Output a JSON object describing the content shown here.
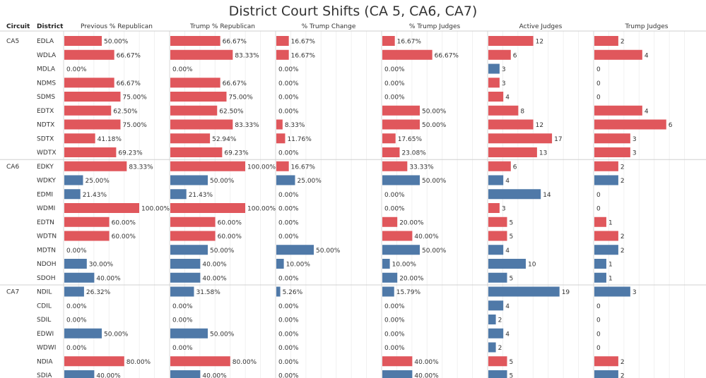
{
  "title": "District Court Shifts (CA 5, CA6, CA7)",
  "colors": {
    "red": "#e0575c",
    "blue": "#4f79a8"
  },
  "chart_data": {
    "type": "bar",
    "title": "District Court Shifts (CA 5, CA6, CA7)",
    "row_headers": [
      "Circuit",
      "District"
    ],
    "columns": [
      {
        "key": "prev",
        "label": "Previous % Republican",
        "max": 100,
        "unit": "%"
      },
      {
        "key": "trump_rep",
        "label": "Trump % Republican",
        "max": 100,
        "unit": "%"
      },
      {
        "key": "change",
        "label": "% Trump Change",
        "max": 100,
        "unit": "%"
      },
      {
        "key": "trump_judges_pct",
        "label": "% Trump Judges",
        "max": 100,
        "unit": "%"
      },
      {
        "key": "active",
        "label": "Active Judges",
        "max": 20,
        "unit": ""
      },
      {
        "key": "trump_judges",
        "label": "Trump Judges",
        "max": 6.25,
        "unit": ""
      }
    ],
    "groups": [
      {
        "circuit": "CA5",
        "rows": [
          {
            "district": "EDLA",
            "color": "red",
            "values": [
              "50.00%",
              "66.67%",
              "16.67%",
              "16.67%",
              "12",
              "2"
            ]
          },
          {
            "district": "WDLA",
            "color": "red",
            "values": [
              "66.67%",
              "83.33%",
              "16.67%",
              "66.67%",
              "6",
              "4"
            ]
          },
          {
            "district": "MDLA",
            "color": "blue",
            "values": [
              "0.00%",
              "0.00%",
              "0.00%",
              "0.00%",
              "3",
              "0"
            ]
          },
          {
            "district": "NDMS",
            "color": "red",
            "values": [
              "66.67%",
              "66.67%",
              "0.00%",
              "0.00%",
              "3",
              "0"
            ]
          },
          {
            "district": "SDMS",
            "color": "red",
            "values": [
              "75.00%",
              "75.00%",
              "0.00%",
              "0.00%",
              "4",
              "0"
            ]
          },
          {
            "district": "EDTX",
            "color": "red",
            "values": [
              "62.50%",
              "62.50%",
              "0.00%",
              "50.00%",
              "8",
              "4"
            ]
          },
          {
            "district": "NDTX",
            "color": "red",
            "values": [
              "75.00%",
              "83.33%",
              "8.33%",
              "50.00%",
              "12",
              "6"
            ]
          },
          {
            "district": "SDTX",
            "color": "red",
            "values": [
              "41.18%",
              "52.94%",
              "11.76%",
              "17.65%",
              "17",
              "3"
            ]
          },
          {
            "district": "WDTX",
            "color": "red",
            "values": [
              "69.23%",
              "69.23%",
              "0.00%",
              "23.08%",
              "13",
              "3"
            ]
          }
        ]
      },
      {
        "circuit": "CA6",
        "rows": [
          {
            "district": "EDKY",
            "color": "red",
            "values": [
              "83.33%",
              "100.00%",
              "16.67%",
              "33.33%",
              "6",
              "2"
            ]
          },
          {
            "district": "WDKY",
            "color": "blue",
            "values": [
              "25.00%",
              "50.00%",
              "25.00%",
              "50.00%",
              "4",
              "2"
            ]
          },
          {
            "district": "EDMI",
            "color": "blue",
            "values": [
              "21.43%",
              "21.43%",
              "0.00%",
              "0.00%",
              "14",
              "0"
            ]
          },
          {
            "district": "WDMI",
            "color": "red",
            "values": [
              "100.00%",
              "100.00%",
              "0.00%",
              "0.00%",
              "3",
              "0"
            ]
          },
          {
            "district": "EDTN",
            "color": "red",
            "values": [
              "60.00%",
              "60.00%",
              "0.00%",
              "20.00%",
              "5",
              "1"
            ]
          },
          {
            "district": "WDTN",
            "color": "red",
            "values": [
              "60.00%",
              "60.00%",
              "0.00%",
              "40.00%",
              "5",
              "2"
            ]
          },
          {
            "district": "MDTN",
            "color": "blue",
            "values": [
              "0.00%",
              "50.00%",
              "50.00%",
              "50.00%",
              "4",
              "2"
            ]
          },
          {
            "district": "NDOH",
            "color": "blue",
            "values": [
              "30.00%",
              "40.00%",
              "10.00%",
              "10.00%",
              "10",
              "1"
            ]
          },
          {
            "district": "SDOH",
            "color": "blue",
            "values": [
              "40.00%",
              "40.00%",
              "0.00%",
              "20.00%",
              "5",
              "1"
            ]
          }
        ]
      },
      {
        "circuit": "CA7",
        "rows": [
          {
            "district": "NDIL",
            "color": "blue",
            "values": [
              "26.32%",
              "31.58%",
              "5.26%",
              "15.79%",
              "19",
              "3"
            ]
          },
          {
            "district": "CDIL",
            "color": "blue",
            "values": [
              "0.00%",
              "0.00%",
              "0.00%",
              "0.00%",
              "4",
              "0"
            ]
          },
          {
            "district": "SDIL",
            "color": "blue",
            "values": [
              "0.00%",
              "0.00%",
              "0.00%",
              "0.00%",
              "2",
              "0"
            ]
          },
          {
            "district": "EDWI",
            "color": "blue",
            "values": [
              "50.00%",
              "50.00%",
              "0.00%",
              "0.00%",
              "4",
              "0"
            ]
          },
          {
            "district": "WDWI",
            "color": "blue",
            "values": [
              "0.00%",
              "0.00%",
              "0.00%",
              "0.00%",
              "2",
              "0"
            ]
          },
          {
            "district": "NDIA",
            "color": "red",
            "values": [
              "80.00%",
              "80.00%",
              "0.00%",
              "40.00%",
              "5",
              "2"
            ]
          },
          {
            "district": "SDIA",
            "color": "blue",
            "values": [
              "40.00%",
              "40.00%",
              "0.00%",
              "40.00%",
              "5",
              "2"
            ]
          }
        ]
      }
    ]
  }
}
